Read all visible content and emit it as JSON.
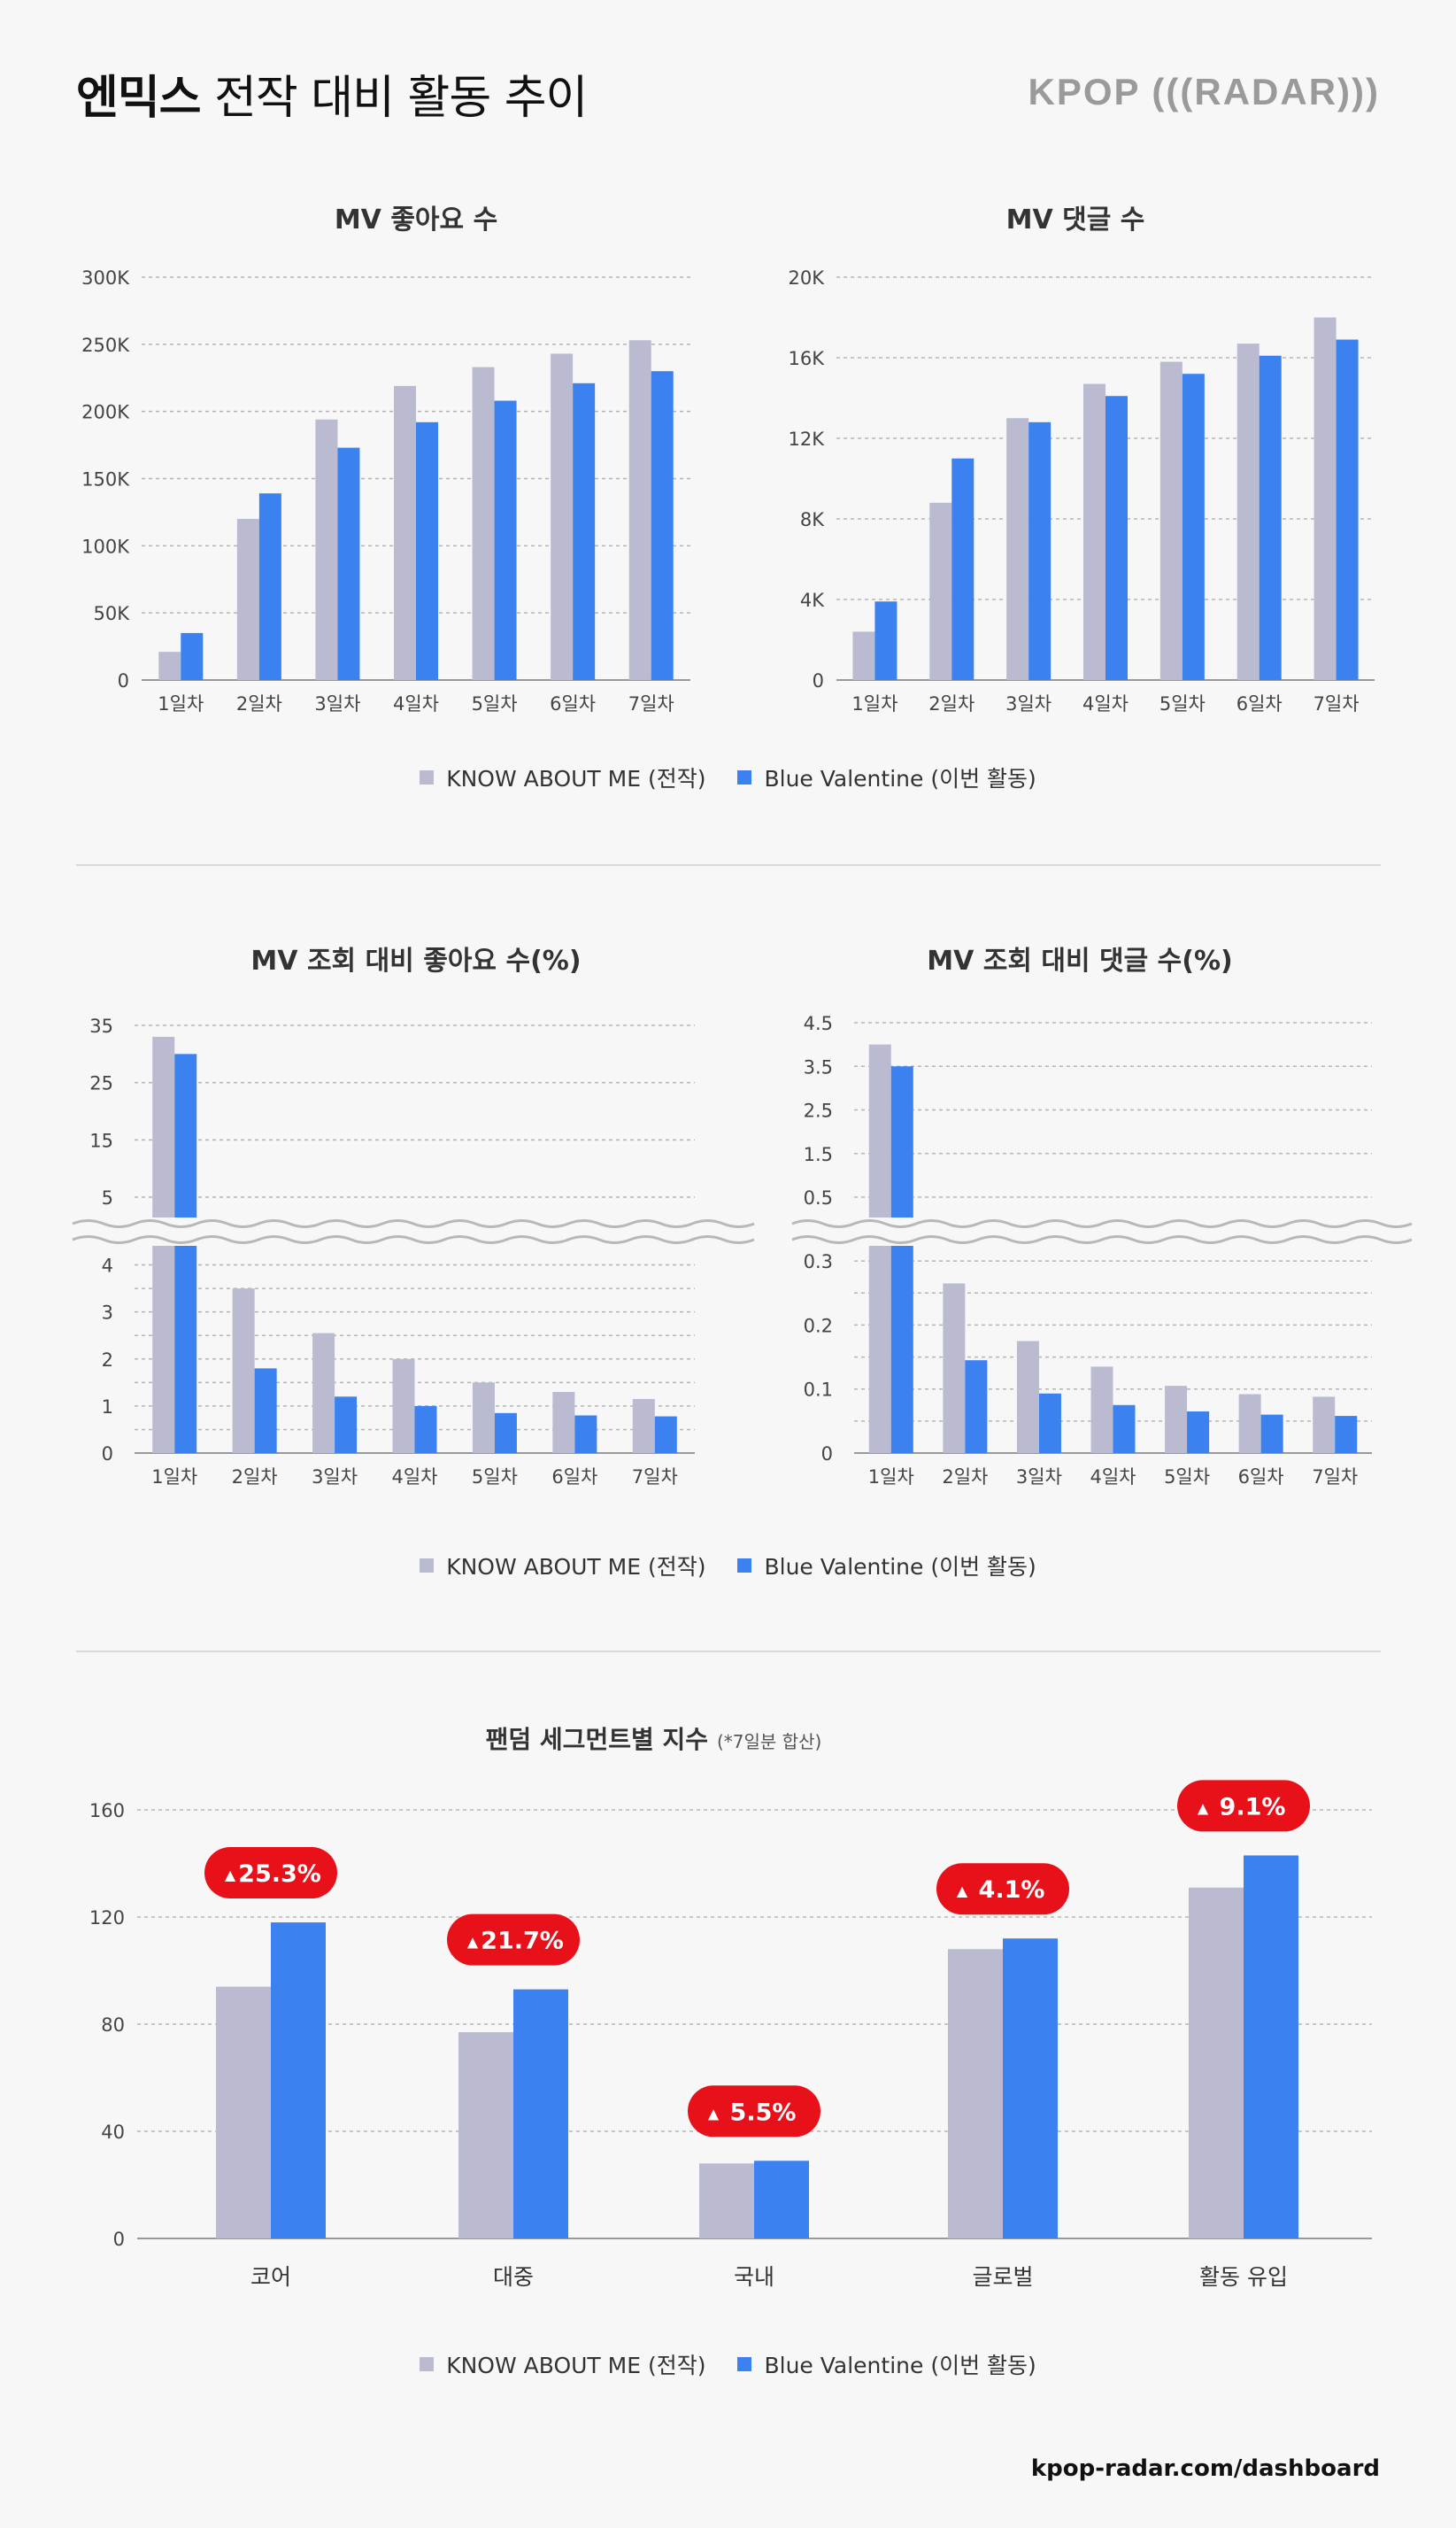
{
  "header": {
    "group": "엔믹스",
    "title_rest": "전작 대비 활동 추이",
    "brand": "KPOP (((RADAR)))"
  },
  "colors": {
    "prev": "#babbd0",
    "curr": "#3b82f0",
    "badge": "#e8111a",
    "grid": "#b5b5b5"
  },
  "legend": {
    "prev": "KNOW ABOUT ME (전작)",
    "curr": "Blue Valentine (이번 활동)"
  },
  "footer": {
    "url": "kpop-radar.com/dashboard"
  },
  "chart_data": [
    {
      "id": "likes",
      "type": "bar",
      "title": "MV 좋아요 수",
      "categories": [
        "1일차",
        "2일차",
        "3일차",
        "4일차",
        "5일차",
        "6일차",
        "7일차"
      ],
      "series": [
        {
          "name": "KNOW ABOUT ME (전작)",
          "values": [
            21000,
            120000,
            194000,
            219000,
            233000,
            243000,
            253000
          ]
        },
        {
          "name": "Blue Valentine (이번 활동)",
          "values": [
            35000,
            139000,
            173000,
            192000,
            208000,
            221000,
            230000
          ]
        }
      ],
      "ylim": [
        0,
        300000
      ],
      "ytick_values": [
        0,
        50000,
        100000,
        150000,
        200000,
        250000,
        300000
      ],
      "ytick_labels": [
        "0",
        "50K",
        "100K",
        "150K",
        "200K",
        "250K",
        "300K"
      ]
    },
    {
      "id": "comments",
      "type": "bar",
      "title": "MV 댓글 수",
      "categories": [
        "1일차",
        "2일차",
        "3일차",
        "4일차",
        "5일차",
        "6일차",
        "7일차"
      ],
      "series": [
        {
          "name": "KNOW ABOUT ME (전작)",
          "values": [
            2400,
            8800,
            13000,
            14700,
            15800,
            16700,
            18000
          ]
        },
        {
          "name": "Blue Valentine (이번 활동)",
          "values": [
            3900,
            11000,
            12800,
            14100,
            15200,
            16100,
            16900
          ]
        }
      ],
      "ylim": [
        0,
        20000
      ],
      "ytick_values": [
        0,
        4000,
        8000,
        12000,
        16000,
        20000
      ],
      "ytick_labels": [
        "0",
        "4K",
        "8K",
        "12K",
        "16K",
        "20K"
      ]
    },
    {
      "id": "like_ratio",
      "type": "bar",
      "title": "MV 조회 대비 좋아요 수(%)",
      "axis_break": true,
      "categories": [
        "1일차",
        "2일차",
        "3일차",
        "4일차",
        "5일차",
        "6일차",
        "7일차"
      ],
      "series": [
        {
          "name": "KNOW ABOUT ME (전작)",
          "values": [
            33,
            3.5,
            2.55,
            2.0,
            1.5,
            1.3,
            1.15
          ]
        },
        {
          "name": "Blue Valentine (이번 활동)",
          "values": [
            30,
            1.8,
            1.2,
            1.0,
            0.85,
            0.8,
            0.78
          ]
        }
      ],
      "lower_ylim": [
        0,
        4.5
      ],
      "upper_ylim": [
        5,
        35
      ],
      "lower_ticks": [
        0,
        1,
        2,
        3,
        4
      ],
      "upper_ticks": [
        5,
        15,
        25,
        35
      ],
      "tick_labels": [
        "0",
        "1",
        "2",
        "3",
        "4",
        "5",
        "15",
        "25",
        "35"
      ]
    },
    {
      "id": "comment_ratio",
      "type": "bar",
      "title": "MV 조회 대비 댓글 수(%)",
      "axis_break": true,
      "categories": [
        "1일차",
        "2일차",
        "3일차",
        "4일차",
        "5일차",
        "6일차",
        "7일차"
      ],
      "series": [
        {
          "name": "KNOW ABOUT ME (전작)",
          "values": [
            4.0,
            0.265,
            0.175,
            0.135,
            0.105,
            0.092,
            0.088
          ]
        },
        {
          "name": "Blue Valentine (이번 활동)",
          "values": [
            3.5,
            0.145,
            0.093,
            0.075,
            0.065,
            0.06,
            0.058
          ]
        }
      ],
      "lower_ylim": [
        0,
        0.35
      ],
      "upper_ylim": [
        0.5,
        4.5
      ],
      "lower_ticks": [
        0,
        0.1,
        0.2,
        0.3
      ],
      "upper_ticks": [
        0.5,
        1.5,
        2.5,
        3.5,
        4.5
      ],
      "tick_labels": [
        "0",
        "0.1",
        "0.2",
        "0.3",
        "0.5",
        "1.5",
        "2.5",
        "3.5",
        "4.5"
      ]
    },
    {
      "id": "segments",
      "type": "bar",
      "title": "팬덤 세그먼트별 지수",
      "subtitle": "(*7일분 합산)",
      "categories": [
        "코어",
        "대중",
        "국내",
        "글로벌",
        "활동 유입"
      ],
      "series": [
        {
          "name": "KNOW ABOUT ME (전작)",
          "values": [
            94,
            77,
            28,
            108,
            131
          ]
        },
        {
          "name": "Blue Valentine (이번 활동)",
          "values": [
            118,
            93,
            29,
            112,
            143
          ]
        }
      ],
      "annotations": [
        "25.3%",
        "21.7%",
        "5.5%",
        "4.1%",
        "9.1%"
      ],
      "annotation_marker": "▲",
      "ylim": [
        0,
        160
      ],
      "ytick_values": [
        0,
        40,
        80,
        120,
        160
      ],
      "ytick_labels": [
        "0",
        "40",
        "80",
        "120",
        "160"
      ]
    }
  ]
}
